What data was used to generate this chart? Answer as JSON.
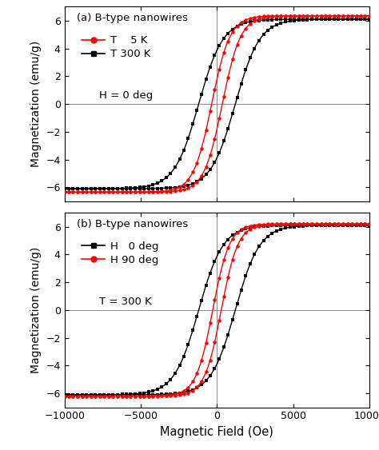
{
  "title_a": "(a) B-type nanowires",
  "title_b": "(b) B-type nanowires",
  "legend_a_1": "T    5 K",
  "legend_a_2": "T 300 K",
  "legend_a_3": "H = 0 deg",
  "legend_b_1": "H   0 deg",
  "legend_b_2": "H 90 deg",
  "legend_b_3": "T = 300 K",
  "xlabel": "Magnetic Field (Oe)",
  "ylabel": "Magnetization (emu/g)",
  "xlim": [
    -10000,
    10000
  ],
  "ylim": [
    -7,
    7
  ],
  "yticks": [
    -6,
    -4,
    -2,
    0,
    2,
    4,
    6
  ],
  "xticks": [
    -10000,
    -5000,
    0,
    5000,
    10000
  ],
  "color_red": "#ff0000",
  "color_black": "#000000",
  "bg_color": "#ffffff",
  "Ms_5K": 6.35,
  "Ms_300K_a": 6.1,
  "Hc_5K": 350,
  "Hc_300K_a": 1200,
  "slope_5K": 1200,
  "slope_300K_a": 1600,
  "Ms_0deg": 6.1,
  "Ms_90deg": 6.2,
  "Hc_0deg": 1200,
  "Hc_90deg": 280,
  "slope_0deg": 1600,
  "slope_90deg": 1100
}
